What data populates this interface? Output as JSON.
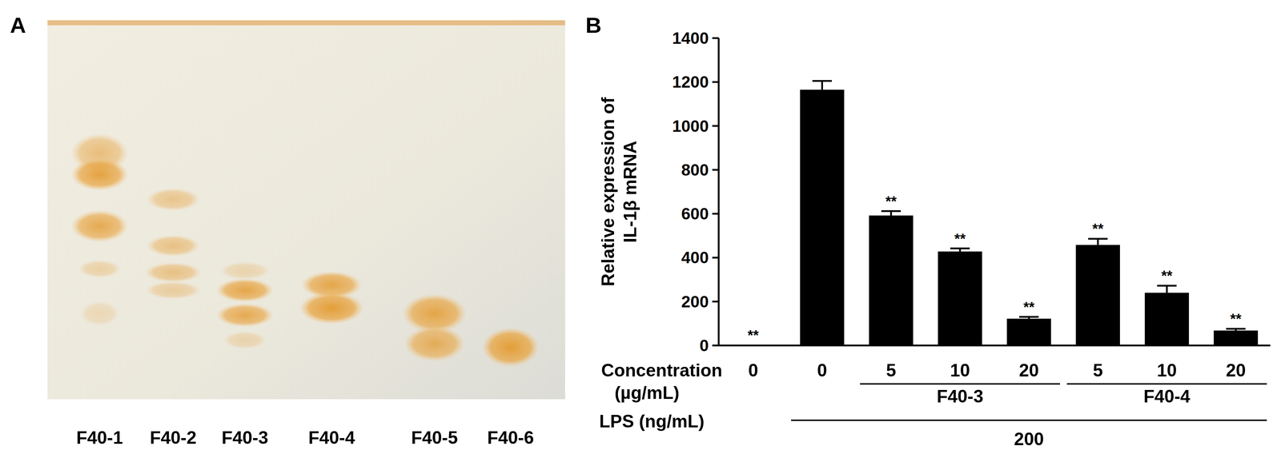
{
  "panel_labels": [
    "A",
    "B"
  ],
  "tlc": {
    "lanes": [
      "F40-1",
      "F40-2",
      "F40-3",
      "F40-4",
      "F40-5",
      "F40-6"
    ]
  },
  "chart_data": {
    "type": "bar",
    "ylabel": [
      "Relative expression of",
      "IL-1β mRNA"
    ],
    "categories": [
      "0",
      "0",
      "5",
      "10",
      "20",
      "5",
      "10",
      "20"
    ],
    "category_label": [
      "Concentration",
      "(µg/mL)"
    ],
    "groups": [
      null,
      null,
      "F40-3",
      "F40-3",
      "F40-3",
      "F40-4",
      "F40-4",
      "F40-4"
    ],
    "lps": {
      "label": "LPS (ng/mL)",
      "values": [
        null,
        "200",
        "200",
        "200",
        "200",
        "200",
        "200",
        "200"
      ]
    },
    "values": [
      1,
      1165,
      592,
      428,
      122,
      458,
      240,
      68
    ],
    "errors": [
      0,
      40,
      20,
      14,
      8,
      28,
      32,
      8
    ],
    "significance": [
      "**",
      null,
      "**",
      "**",
      "**",
      "**",
      "**",
      "**"
    ],
    "color": "#000000",
    "ylim": [
      0,
      1400
    ],
    "yticks": [
      0,
      200,
      400,
      600,
      800,
      1000,
      1200,
      1400
    ],
    "grid": false
  }
}
